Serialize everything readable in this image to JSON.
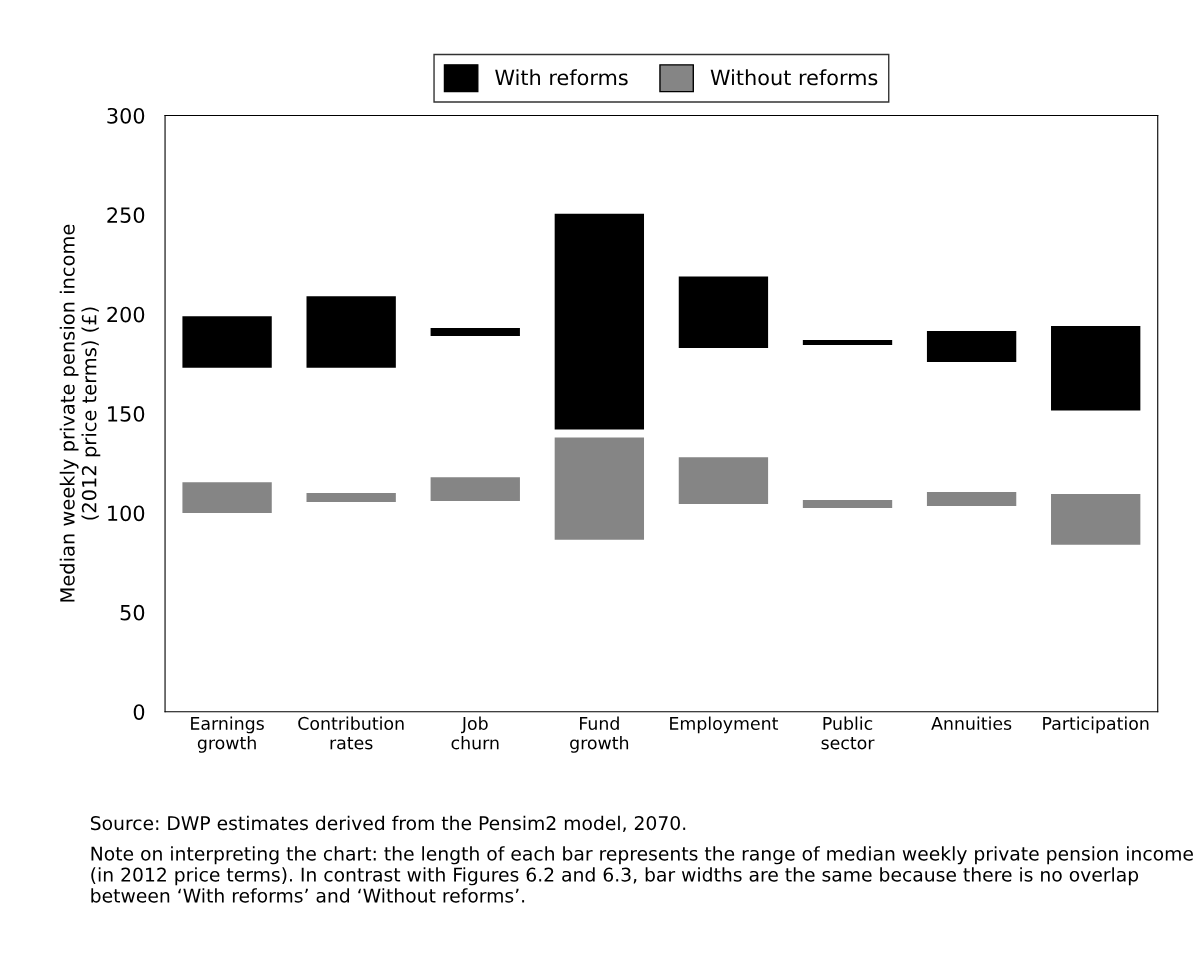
{
  "chart_data": {
    "type": "bar",
    "categories": [
      "Earnings\ngrowth",
      "Contribution\nrates",
      "Job\nchurn",
      "Fund\ngrowth",
      "Employment",
      "Public\nsector",
      "Annuities",
      "Participation"
    ],
    "ylabel": "Median weekly private pension income\n(2012 price terms) (£)",
    "ylim": [
      0,
      300
    ],
    "yticks": [
      0,
      50,
      100,
      150,
      200,
      250,
      300
    ],
    "series": [
      {
        "name": "With reforms",
        "color": "#000000",
        "base": [
          173,
          173,
          189,
          142,
          183,
          184.5,
          176,
          151.5
        ],
        "values": [
          26,
          36,
          4,
          108.5,
          36,
          2.5,
          15.5,
          42.5
        ]
      },
      {
        "name": "Without reforms",
        "color": "#858585",
        "base": [
          100,
          105.5,
          106,
          86.5,
          104.5,
          102.5,
          103.5,
          84
        ],
        "values": [
          15.5,
          4.5,
          12,
          51.5,
          23.5,
          4,
          7,
          25.5
        ]
      }
    ],
    "legend": "top",
    "grid": false,
    "annotations": [
      "Source: DWP estimates derived from the Pensim2 model, 2070.",
      "Note on interpreting the chart: the length of each bar represents the range of median weekly private pension income (in 2012 price terms). In contrast with Figures 6.2 and 6.3, bar widths are the same because there is no overlap between ‘With reforms’ and ‘Without reforms’."
    ]
  }
}
